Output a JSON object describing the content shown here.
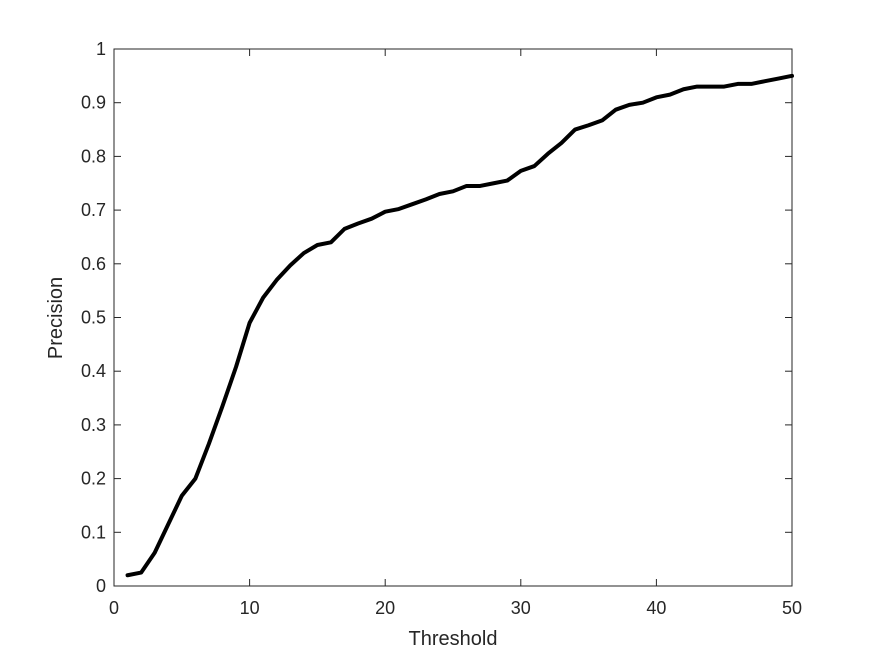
{
  "chart_data": {
    "type": "line",
    "title": "",
    "xlabel": "Threshold",
    "ylabel": "Precision",
    "xlim": [
      0,
      50
    ],
    "ylim": [
      0,
      1
    ],
    "x_ticks": [
      0,
      10,
      20,
      30,
      40,
      50
    ],
    "y_ticks": [
      0,
      0.1,
      0.2,
      0.3,
      0.4,
      0.5,
      0.6,
      0.7,
      0.8,
      0.9,
      1
    ],
    "x_tick_labels": [
      "0",
      "10",
      "20",
      "30",
      "40",
      "50"
    ],
    "y_tick_labels": [
      "0",
      "0.1",
      "0.2",
      "0.3",
      "0.4",
      "0.5",
      "0.6",
      "0.7",
      "0.8",
      "0.9",
      "1"
    ],
    "grid": false,
    "line_color": "#000000",
    "series": [
      {
        "x": [
          1,
          2,
          3,
          4,
          5,
          6,
          7,
          8,
          9,
          10,
          11,
          12,
          13,
          14,
          15,
          16,
          17,
          18,
          19,
          20,
          21,
          22,
          23,
          24,
          25,
          26,
          27,
          28,
          29,
          30,
          31,
          32,
          33,
          34,
          35,
          36,
          37,
          38,
          39,
          40,
          41,
          42,
          43,
          44,
          45,
          46,
          47,
          48,
          49,
          50
        ],
        "values": [
          0.02,
          0.025,
          0.062,
          0.115,
          0.168,
          0.2,
          0.265,
          0.335,
          0.408,
          0.49,
          0.537,
          0.57,
          0.597,
          0.62,
          0.635,
          0.64,
          0.665,
          0.675,
          0.684,
          0.697,
          0.702,
          0.711,
          0.72,
          0.73,
          0.735,
          0.745,
          0.745,
          0.75,
          0.755,
          0.773,
          0.782,
          0.805,
          0.825,
          0.85,
          0.858,
          0.867,
          0.887,
          0.896,
          0.9,
          0.91,
          0.915,
          0.925,
          0.93,
          0.93,
          0.93,
          0.935,
          0.935,
          0.94,
          0.945,
          0.95
        ]
      }
    ]
  }
}
